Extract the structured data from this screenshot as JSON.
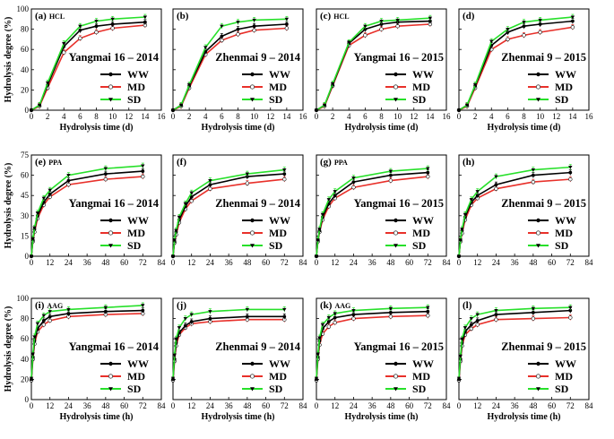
{
  "figure": {
    "x_unit_days": "Hydrolysis time (d)",
    "x_unit_hours": "Hydrolysis time (h)",
    "y_unit": "Hydrolysis degree (%)"
  },
  "legend_entries": [
    "WW",
    "MD",
    "SD"
  ],
  "series_colors": {
    "WW": "#000000",
    "MD": "#e8302a",
    "SD": "#27e02a"
  },
  "chart_data": [
    {
      "id": "a",
      "label": "(a)",
      "method": "HCL",
      "title": "Yangmai 16 – 2014",
      "type": "line",
      "xlabel": "Hydrolysis time (d)",
      "ylabel": "Hydrolysis degree (%)",
      "xlim": [
        0,
        16
      ],
      "xticks": [
        0,
        2,
        4,
        6,
        8,
        10,
        12,
        14,
        16
      ],
      "ylim": [
        0,
        100
      ],
      "yticks": [
        0,
        20,
        40,
        60,
        80,
        100
      ],
      "x": [
        0,
        1,
        2,
        4,
        6,
        8,
        10,
        14
      ],
      "series": [
        {
          "name": "WW",
          "values": [
            0,
            5,
            25,
            63,
            79,
            83,
            85,
            87
          ]
        },
        {
          "name": "MD",
          "values": [
            0,
            4,
            22,
            57,
            71,
            77,
            81,
            84
          ]
        },
        {
          "name": "SD",
          "values": [
            0,
            5,
            27,
            66,
            83,
            88,
            90,
            92
          ]
        }
      ]
    },
    {
      "id": "b",
      "label": "(b)",
      "method": "",
      "title": "Zhenmai 9 – 2014",
      "type": "line",
      "xlabel": "Hydrolysis time (d)",
      "ylabel": "",
      "xlim": [
        0,
        16
      ],
      "xticks": [
        0,
        2,
        4,
        6,
        8,
        10,
        12,
        14,
        16
      ],
      "ylim": [
        0,
        100
      ],
      "yticks": [
        0,
        20,
        40,
        60,
        80,
        100
      ],
      "x": [
        0,
        1,
        2,
        4,
        6,
        8,
        10,
        14
      ],
      "series": [
        {
          "name": "WW",
          "values": [
            0,
            5,
            24,
            58,
            73,
            80,
            83,
            85
          ]
        },
        {
          "name": "MD",
          "values": [
            0,
            4,
            22,
            55,
            69,
            75,
            79,
            81
          ]
        },
        {
          "name": "SD",
          "values": [
            0,
            5,
            25,
            62,
            83,
            87,
            89,
            90
          ]
        }
      ]
    },
    {
      "id": "c",
      "label": "(c)",
      "method": "HCL",
      "title": "Yangmai 16 – 2015",
      "type": "line",
      "xlabel": "Hydrolysis time (d)",
      "ylabel": "",
      "xlim": [
        0,
        16
      ],
      "xticks": [
        0,
        2,
        4,
        6,
        8,
        10,
        12,
        14,
        16
      ],
      "ylim": [
        0,
        100
      ],
      "yticks": [
        0,
        20,
        40,
        60,
        80,
        100
      ],
      "x": [
        0,
        1,
        2,
        4,
        6,
        8,
        10,
        14
      ],
      "series": [
        {
          "name": "WW",
          "values": [
            0,
            5,
            25,
            66,
            80,
            85,
            87,
            88
          ]
        },
        {
          "name": "MD",
          "values": [
            0,
            4,
            24,
            64,
            74,
            80,
            83,
            85
          ]
        },
        {
          "name": "SD",
          "values": [
            0,
            5,
            26,
            67,
            83,
            88,
            89,
            91
          ]
        }
      ]
    },
    {
      "id": "d",
      "label": "(d)",
      "method": "",
      "title": "Zhenmai 9 – 2015",
      "type": "line",
      "xlabel": "Hydrolysis time (d)",
      "ylabel": "",
      "xlim": [
        0,
        16
      ],
      "xticks": [
        0,
        2,
        4,
        6,
        8,
        10,
        12,
        14,
        16
      ],
      "ylim": [
        0,
        100
      ],
      "yticks": [
        0,
        20,
        40,
        60,
        80,
        100
      ],
      "x": [
        0,
        1,
        2,
        4,
        6,
        8,
        10,
        14
      ],
      "series": [
        {
          "name": "WW",
          "values": [
            0,
            5,
            24,
            64,
            77,
            83,
            85,
            88
          ]
        },
        {
          "name": "MD",
          "values": [
            0,
            4,
            22,
            60,
            70,
            74,
            77,
            82
          ]
        },
        {
          "name": "SD",
          "values": [
            0,
            5,
            25,
            68,
            80,
            87,
            89,
            92
          ]
        }
      ]
    },
    {
      "id": "e",
      "label": "(e)",
      "method": "PPA",
      "title": "Yangmai 16 – 2014",
      "type": "line",
      "xlabel": "",
      "ylabel": "Hydrolysis degree (%)",
      "xlim": [
        0,
        84
      ],
      "xticks": [
        0,
        12,
        24,
        36,
        48,
        60,
        72,
        84
      ],
      "ylim": [
        0,
        75
      ],
      "yticks": [
        0,
        15,
        30,
        45,
        60,
        75
      ],
      "x": [
        0,
        1,
        2,
        4,
        8,
        12,
        24,
        48,
        72
      ],
      "series": [
        {
          "name": "WW",
          "values": [
            0,
            12,
            20,
            30,
            40,
            46,
            56,
            61,
            63
          ]
        },
        {
          "name": "MD",
          "values": [
            0,
            11,
            18,
            28,
            38,
            44,
            53,
            57,
            59
          ]
        },
        {
          "name": "SD",
          "values": [
            0,
            13,
            21,
            32,
            43,
            49,
            60,
            65,
            67
          ]
        }
      ]
    },
    {
      "id": "f",
      "label": "(f)",
      "method": "",
      "title": "Zhenmai 9 – 2014",
      "type": "line",
      "xlabel": "",
      "ylabel": "",
      "xlim": [
        0,
        84
      ],
      "xticks": [
        0,
        12,
        24,
        36,
        48,
        60,
        72,
        84
      ],
      "ylim": [
        0,
        75
      ],
      "yticks": [
        0,
        15,
        30,
        45,
        60,
        75
      ],
      "x": [
        0,
        1,
        2,
        4,
        8,
        12,
        24,
        48,
        72
      ],
      "series": [
        {
          "name": "WW",
          "values": [
            0,
            11,
            18,
            27,
            37,
            44,
            53,
            59,
            61
          ]
        },
        {
          "name": "MD",
          "values": [
            0,
            10,
            16,
            25,
            35,
            41,
            50,
            54,
            57
          ]
        },
        {
          "name": "SD",
          "values": [
            0,
            12,
            19,
            29,
            39,
            47,
            56,
            61,
            64
          ]
        }
      ]
    },
    {
      "id": "g",
      "label": "(g)",
      "method": "PPA",
      "title": "Yangmai 16 – 2015",
      "type": "line",
      "xlabel": "",
      "ylabel": "",
      "xlim": [
        0,
        84
      ],
      "xticks": [
        0,
        12,
        24,
        36,
        48,
        60,
        72,
        84
      ],
      "ylim": [
        0,
        75
      ],
      "yticks": [
        0,
        15,
        30,
        45,
        60,
        75
      ],
      "x": [
        0,
        1,
        2,
        4,
        8,
        12,
        24,
        48,
        72
      ],
      "series": [
        {
          "name": "WW",
          "values": [
            0,
            12,
            19,
            29,
            39,
            45,
            55,
            60,
            62
          ]
        },
        {
          "name": "MD",
          "values": [
            0,
            11,
            18,
            27,
            37,
            43,
            51,
            56,
            59
          ]
        },
        {
          "name": "SD",
          "values": [
            0,
            12,
            20,
            31,
            42,
            48,
            58,
            63,
            65
          ]
        }
      ]
    },
    {
      "id": "h",
      "label": "(h)",
      "method": "",
      "title": "Zhenmai 9 – 2015",
      "type": "line",
      "xlabel": "",
      "ylabel": "",
      "xlim": [
        0,
        84
      ],
      "xticks": [
        0,
        12,
        24,
        36,
        48,
        60,
        72,
        84
      ],
      "ylim": [
        0,
        75
      ],
      "yticks": [
        0,
        15,
        30,
        45,
        60,
        75
      ],
      "x": [
        0,
        1,
        2,
        4,
        8,
        12,
        24,
        48,
        72
      ],
      "series": [
        {
          "name": "WW",
          "values": [
            0,
            12,
            19,
            29,
            40,
            45,
            53,
            60,
            62
          ]
        },
        {
          "name": "MD",
          "values": [
            0,
            11,
            17,
            27,
            38,
            43,
            50,
            55,
            57
          ]
        },
        {
          "name": "SD",
          "values": [
            0,
            12,
            20,
            31,
            42,
            48,
            59,
            64,
            66
          ]
        }
      ]
    },
    {
      "id": "i",
      "label": "(i)",
      "method": "AAG",
      "title": "Yangmai 16 – 2014",
      "type": "line",
      "xlabel": "Hydrolysis time (h)",
      "ylabel": "Hydrolysis degree (%)",
      "xlim": [
        0,
        84
      ],
      "xticks": [
        0,
        12,
        24,
        36,
        48,
        60,
        72,
        84
      ],
      "ylim": [
        0,
        100
      ],
      "yticks": [
        0,
        20,
        40,
        60,
        80,
        100
      ],
      "x": [
        0,
        1,
        2,
        4,
        8,
        12,
        24,
        48,
        72
      ],
      "series": [
        {
          "name": "WW",
          "values": [
            20,
            42,
            58,
            70,
            78,
            82,
            85,
            87,
            88
          ]
        },
        {
          "name": "MD",
          "values": [
            19,
            40,
            55,
            67,
            74,
            78,
            82,
            84,
            85
          ]
        },
        {
          "name": "SD",
          "values": [
            21,
            45,
            62,
            75,
            83,
            87,
            89,
            91,
            93
          ]
        }
      ]
    },
    {
      "id": "j",
      "label": "(j)",
      "method": "",
      "title": "Zhenmai 9 – 2014",
      "type": "line",
      "xlabel": "Hydrolysis time (h)",
      "ylabel": "",
      "xlim": [
        0,
        84
      ],
      "xticks": [
        0,
        12,
        24,
        36,
        48,
        60,
        72,
        84
      ],
      "ylim": [
        0,
        100
      ],
      "yticks": [
        0,
        20,
        40,
        60,
        80,
        100
      ],
      "x": [
        0,
        1,
        2,
        4,
        8,
        12,
        24,
        48,
        72
      ],
      "series": [
        {
          "name": "WW",
          "values": [
            20,
            40,
            56,
            66,
            73,
            77,
            80,
            82,
            82
          ]
        },
        {
          "name": "MD",
          "values": [
            19,
            38,
            53,
            64,
            71,
            75,
            77,
            79,
            79
          ]
        },
        {
          "name": "SD",
          "values": [
            21,
            44,
            60,
            71,
            80,
            84,
            87,
            89,
            89
          ]
        }
      ]
    },
    {
      "id": "k",
      "label": "(k)",
      "method": "AAG",
      "title": "Yangmai 16 – 2015",
      "type": "line",
      "xlabel": "Hydrolysis time (h)",
      "ylabel": "",
      "xlim": [
        0,
        84
      ],
      "xticks": [
        0,
        12,
        24,
        36,
        48,
        60,
        72,
        84
      ],
      "ylim": [
        0,
        100
      ],
      "yticks": [
        0,
        20,
        40,
        60,
        80,
        100
      ],
      "x": [
        0,
        1,
        2,
        4,
        8,
        12,
        24,
        48,
        72
      ],
      "series": [
        {
          "name": "WW",
          "values": [
            20,
            42,
            58,
            70,
            77,
            81,
            84,
            86,
            87
          ]
        },
        {
          "name": "MD",
          "values": [
            19,
            40,
            54,
            65,
            72,
            76,
            80,
            82,
            83
          ]
        },
        {
          "name": "SD",
          "values": [
            21,
            45,
            61,
            74,
            81,
            85,
            88,
            90,
            91
          ]
        }
      ]
    },
    {
      "id": "l",
      "label": "(l)",
      "method": "",
      "title": "Zhenmai 9 – 2015",
      "type": "line",
      "xlabel": "Hydrolysis time (h)",
      "ylabel": "",
      "xlim": [
        0,
        84
      ],
      "xticks": [
        0,
        12,
        24,
        36,
        48,
        60,
        72,
        84
      ],
      "ylim": [
        0,
        100
      ],
      "yticks": [
        0,
        20,
        40,
        60,
        80,
        100
      ],
      "x": [
        0,
        1,
        2,
        4,
        8,
        12,
        24,
        48,
        72
      ],
      "series": [
        {
          "name": "WW",
          "values": [
            20,
            40,
            56,
            67,
            74,
            78,
            84,
            86,
            88
          ]
        },
        {
          "name": "MD",
          "values": [
            19,
            38,
            53,
            64,
            70,
            74,
            79,
            80,
            81
          ]
        },
        {
          "name": "SD",
          "values": [
            21,
            43,
            60,
            71,
            80,
            84,
            88,
            90,
            91
          ]
        }
      ]
    }
  ]
}
